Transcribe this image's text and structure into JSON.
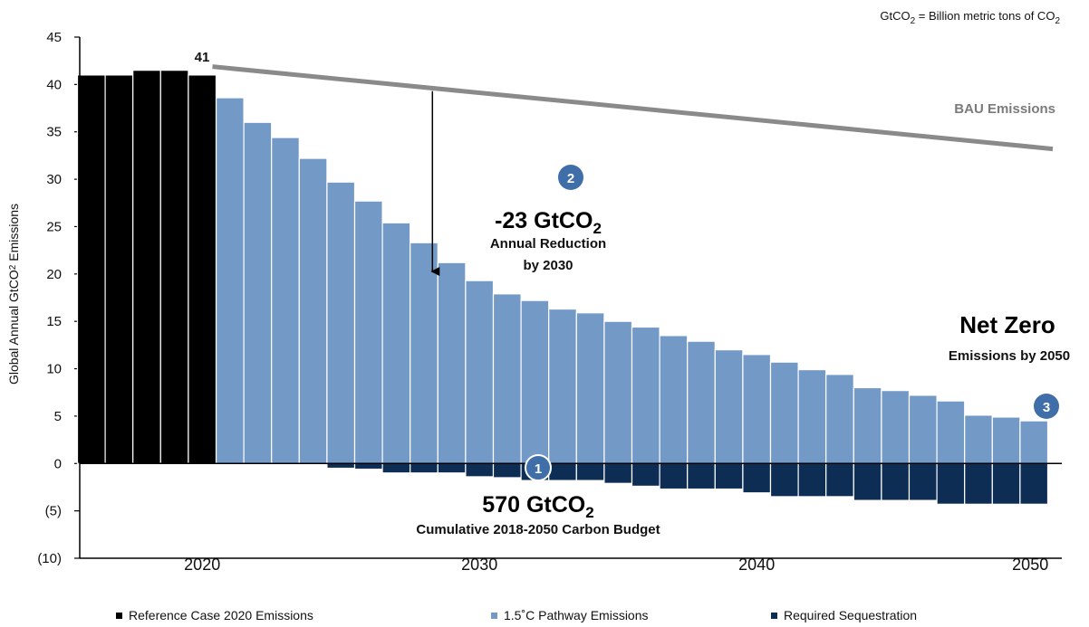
{
  "chart_data": {
    "type": "bar",
    "title": "",
    "note_prefix": "GtCO",
    "note_suffix": " = Billion metric tons of CO",
    "ylabel_prefix": "Global Annual GtCO",
    "ylabel_suffix": " Emissions",
    "ylim": [
      -10,
      45
    ],
    "yticks": [
      {
        "value": 45,
        "label": "45"
      },
      {
        "value": 40,
        "label": "40"
      },
      {
        "value": 35,
        "label": "35"
      },
      {
        "value": 30,
        "label": "30"
      },
      {
        "value": 25,
        "label": "25"
      },
      {
        "value": 20,
        "label": "20"
      },
      {
        "value": 15,
        "label": "15"
      },
      {
        "value": 10,
        "label": "10"
      },
      {
        "value": 5,
        "label": "5"
      },
      {
        "value": 0,
        "label": "0"
      },
      {
        "value": -5,
        "label": "(5)"
      },
      {
        "value": -10,
        "label": "(10)"
      }
    ],
    "xticks": [
      {
        "value": 2020,
        "label": "2020"
      },
      {
        "value": 2030,
        "label": "2030"
      },
      {
        "value": 2040,
        "label": "2040"
      },
      {
        "value": 2050,
        "label": "2050"
      }
    ],
    "reference": {
      "name": "Reference Case 2020 Emissions",
      "color": "#000000",
      "years": [
        2016,
        2017,
        2018,
        2019,
        2020
      ],
      "values": [
        41.0,
        41.0,
        41.5,
        41.5,
        41.0
      ],
      "label": "41"
    },
    "pathway": {
      "name": "1.5˚C Pathway Emissions",
      "color": "#7399c6",
      "years": [
        2021,
        2022,
        2023,
        2024,
        2025,
        2026,
        2027,
        2028,
        2029,
        2030,
        2031,
        2032,
        2033,
        2034,
        2035,
        2036,
        2037,
        2038,
        2039,
        2040,
        2041,
        2042,
        2043,
        2044,
        2045,
        2046,
        2047,
        2048,
        2049,
        2050
      ],
      "values": [
        38.6,
        36.0,
        34.4,
        32.2,
        29.7,
        27.7,
        25.4,
        23.3,
        21.2,
        19.3,
        17.9,
        17.2,
        16.3,
        15.9,
        15.0,
        14.4,
        13.5,
        12.9,
        12.0,
        11.5,
        10.7,
        9.9,
        9.4,
        8.0,
        7.7,
        7.2,
        6.6,
        5.1,
        4.9,
        4.5
      ]
    },
    "sequestration": {
      "name": "Required Sequestration",
      "color": "#0d2d55",
      "years": [
        2025,
        2026,
        2027,
        2028,
        2029,
        2030,
        2031,
        2032,
        2033,
        2034,
        2035,
        2036,
        2037,
        2038,
        2039,
        2040,
        2041,
        2042,
        2043,
        2044,
        2045,
        2046,
        2047,
        2048,
        2049,
        2050
      ],
      "values": [
        -0.5,
        -0.6,
        -1.0,
        -1.0,
        -1.0,
        -1.4,
        -1.5,
        -1.8,
        -1.8,
        -1.8,
        -2.1,
        -2.4,
        -2.7,
        -2.7,
        -2.7,
        -3.1,
        -3.5,
        -3.5,
        -3.5,
        -3.9,
        -3.9,
        -3.9,
        -4.3,
        -4.3,
        -4.3,
        -4.3
      ]
    },
    "bau": {
      "name": "BAU Emissions",
      "color": "#8a8a8a",
      "x": [
        2020,
        2050
      ],
      "values": [
        41.5,
        33.2
      ]
    },
    "arrow": {
      "year": 2029,
      "from": 39.3,
      "to": 19.5
    },
    "annotations": {
      "reduction": {
        "number": "2",
        "headline_prefix": "-23 GtCO",
        "headline_sub": "2",
        "line1": "Annual Reduction",
        "line2": "by 2030"
      },
      "budget": {
        "number": "1",
        "headline_prefix": "570 GtCO",
        "headline_sub": "2",
        "line1": "Cumulative 2018-2050 Carbon Budget"
      },
      "net_zero": {
        "number": "3",
        "headline": "Net Zero",
        "line1": "Emissions by 2050"
      }
    },
    "badge_color": "#3f6ea8",
    "sub2": "2"
  }
}
